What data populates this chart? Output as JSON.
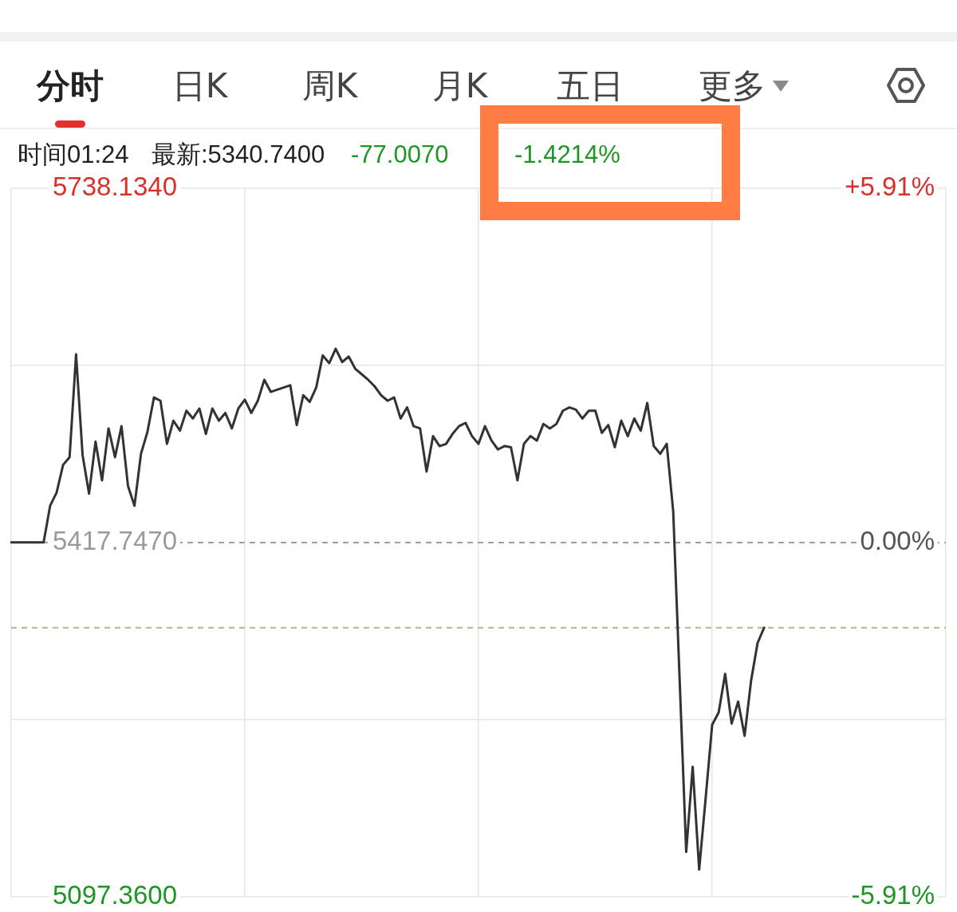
{
  "chart_data": {
    "type": "line",
    "annotations": [
      "分时",
      "日K",
      "周K",
      "月K",
      "五日",
      "更多",
      "时间01:24",
      "最新:5340.7400",
      "-77.0070",
      "-1.4214%"
    ],
    "categories": [
      null,
      null,
      null,
      null,
      null,
      null,
      null,
      null,
      null,
      null,
      null,
      null,
      null,
      null,
      null,
      null,
      null,
      null,
      null,
      null,
      null,
      null,
      null,
      null,
      null,
      null,
      null,
      null,
      null,
      null,
      null,
      null,
      null,
      null,
      null,
      null,
      null,
      null,
      null,
      null,
      null,
      null,
      null,
      null,
      null,
      null,
      null,
      null,
      null,
      null,
      null,
      null,
      null,
      null,
      null,
      null,
      null,
      null,
      null,
      null,
      null,
      null,
      null,
      null,
      null,
      null,
      null,
      null,
      null,
      null,
      null,
      null,
      null,
      null,
      null,
      null,
      null,
      null,
      null,
      null,
      null,
      null,
      null,
      null,
      null,
      null,
      null,
      null,
      null,
      null,
      null,
      null,
      null,
      null,
      null,
      null,
      null,
      null,
      null,
      null,
      null,
      null,
      null,
      null,
      null,
      null,
      null,
      null,
      null,
      null,
      null,
      null,
      null,
      null,
      null,
      null,
      null,
      null,
      null,
      null,
      null,
      null,
      null,
      null,
      null,
      null,
      null,
      null,
      null,
      null,
      null,
      null,
      null,
      null,
      null,
      null,
      null,
      null,
      null,
      null,
      null,
      null,
      null,
      null,
      null
    ],
    "series": [
      {
        "color": "#333333",
        "values": [
          5418,
          5418,
          5418,
          5418,
          5418,
          5418,
          5451,
          5463,
          5488,
          5495,
          5588,
          5497,
          5462,
          5509,
          5474,
          5521,
          5495,
          5523,
          5469,
          5451,
          5498,
          5518,
          5549,
          5546,
          5507,
          5528,
          5519,
          5537,
          5530,
          5539,
          5516,
          5539,
          5528,
          5535,
          5521,
          5539,
          5547,
          5535,
          5546,
          5565,
          5554,
          5556,
          5558,
          5560,
          5524,
          5551,
          5545,
          5558,
          5587,
          5580,
          5593,
          5581,
          5586,
          5575,
          5570,
          5565,
          5559,
          5551,
          5546,
          5549,
          5530,
          5540,
          5523,
          5521,
          5482,
          5514,
          5505,
          5507,
          5516,
          5523,
          5526,
          5514,
          5507,
          5523,
          5510,
          5502,
          5505,
          5504,
          5474,
          5507,
          5514,
          5510,
          5525,
          5521,
          5525,
          5537,
          5540,
          5538,
          5530,
          5537,
          5537,
          5517,
          5524,
          5504,
          5528,
          5514,
          5530,
          5519,
          5544,
          5505,
          5498,
          5507,
          5446,
          5292,
          5138,
          5215,
          5122,
          5187,
          5253,
          5264,
          5299,
          5254,
          5274,
          5243,
          5293,
          5327,
          5340.74,
          null,
          null,
          null,
          null,
          null,
          null,
          null,
          null,
          null,
          null,
          null,
          null,
          null,
          null,
          null,
          null,
          null,
          null,
          null,
          null,
          null,
          null,
          null,
          null,
          null,
          null,
          null,
          null
        ]
      }
    ],
    "ylim": [
      5097.36,
      5738.134
    ],
    "yticks": [
      {
        "value": 5097.36,
        "label": "5097.3600"
      },
      {
        "value": 5257.5535,
        "label": null
      },
      {
        "value": 5417.747,
        "label": "5417.7470"
      },
      {
        "value": 5577.9405,
        "label": null
      },
      {
        "value": 5738.134,
        "label": "5738.1340"
      }
    ],
    "y2lim": [
      -5.91,
      5.91
    ],
    "y2ticks": [
      {
        "value": -5.91,
        "label": "-5.91%"
      },
      {
        "value": 0,
        "label": "0.00%"
      },
      {
        "value": 5.91,
        "label": "+5.91%"
      }
    ],
    "grid": true,
    "ref_lines": [
      {
        "axis": "y",
        "value": 5417.747,
        "color": "#9e9e9e",
        "line_style": "dashed"
      },
      {
        "axis": "y",
        "value": 5340.74,
        "color": "#b3b88a",
        "line_style": "dashed"
      }
    ]
  }
}
